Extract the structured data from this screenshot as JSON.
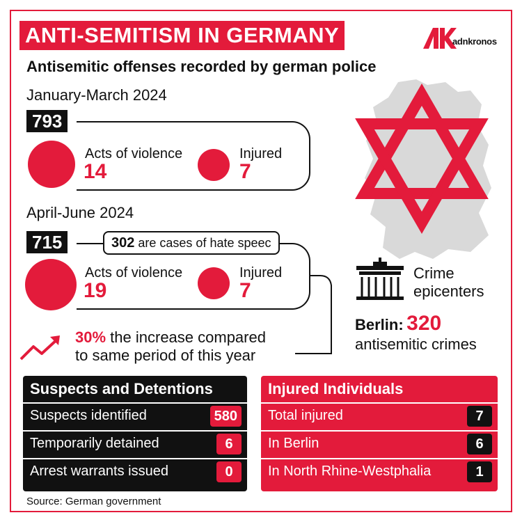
{
  "header": {
    "title": "ANTI-SEMITISM IN GERMANY",
    "subtitle": "Antisemitic offenses recorded by german police",
    "logo_text": "adnkronos",
    "brand_color": "#e31b3b"
  },
  "periods": [
    {
      "label": "January-March 2024",
      "total": "793",
      "violence_label": "Acts of violence",
      "violence_value": "14",
      "injured_label": "Injured",
      "injured_value": "7"
    },
    {
      "label": "April-June 2024",
      "total": "715",
      "hate_speech_count": "302",
      "hate_speech_text": "are cases of hate speec",
      "violence_label": "Acts of violence",
      "violence_value": "19",
      "injured_label": "Injured",
      "injured_value": "7"
    }
  ],
  "increase": {
    "percent": "30%",
    "text_line1": "the increase compared",
    "text_line2": "to same period of this year"
  },
  "crime": {
    "label_line1": "Crime",
    "label_line2": "epicenters",
    "city": "Berlin:",
    "value": "320",
    "sub": "antisemitic crimes"
  },
  "suspects_panel": {
    "title": "Suspects and Detentions",
    "rows": [
      {
        "label": "Suspects identified",
        "value": "580"
      },
      {
        "label": "Temporarily detained",
        "value": "6"
      },
      {
        "label": "Arrest warrants issued",
        "value": "0"
      }
    ]
  },
  "injured_panel": {
    "title": "Injured Individuals",
    "rows": [
      {
        "label": "Total injured",
        "value": "7"
      },
      {
        "label": "In Berlin",
        "value": "6"
      },
      {
        "label": "In North Rhine-Westphalia",
        "value": "1"
      }
    ]
  },
  "source": "Source: German government",
  "icons": [
    "adnkronos-logo-icon",
    "germany-map-icon",
    "star-of-david-icon",
    "brandenburg-gate-icon",
    "trend-up-arrow-icon"
  ]
}
